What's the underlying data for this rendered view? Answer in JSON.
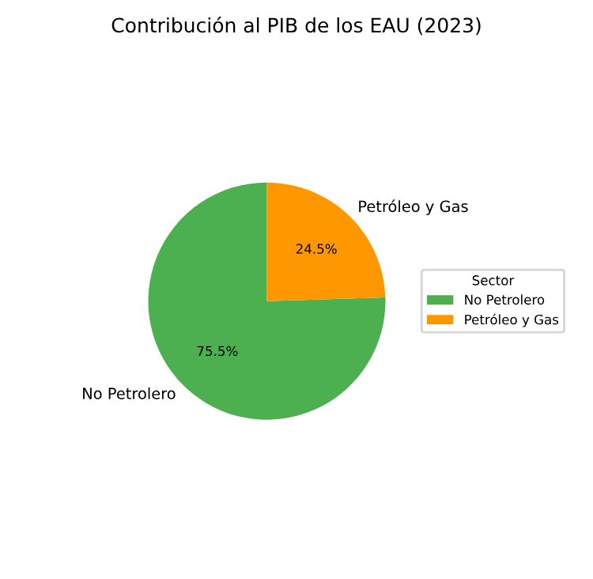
{
  "chart_data": {
    "type": "pie",
    "title": "Contribución al PIB de los EAU (2023)",
    "categories": [
      "No Petrolero",
      "Petróleo y Gas"
    ],
    "values": [
      75.5,
      24.5
    ],
    "colors": [
      "#4caf50",
      "#ff9800"
    ],
    "value_labels": [
      "75.5%",
      "24.5%"
    ],
    "legend_title": "Sector",
    "legend": "right"
  }
}
